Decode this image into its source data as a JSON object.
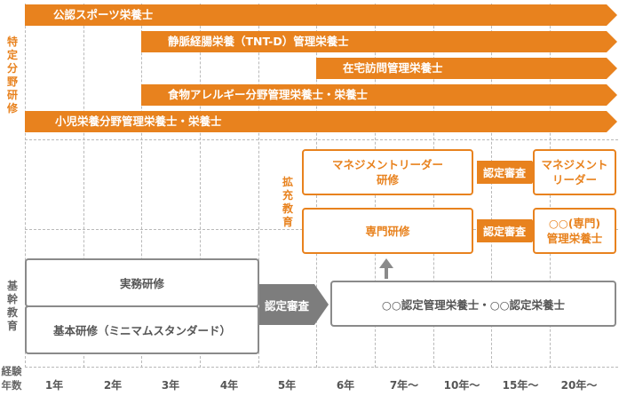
{
  "row_labels": {
    "specialty_training": "特定分野研修",
    "extended_education": "拡充教育",
    "core_education": "基幹教育",
    "years_of_experience": "経験年数"
  },
  "specialty_bars": [
    {
      "label": "公認スポーツ栄養士"
    },
    {
      "label": "静脈経腸栄養（TNT-D）管理栄養士"
    },
    {
      "label": "在宅訪問管理栄養士"
    },
    {
      "label": "食物アレルギー分野管理栄養士・栄養士"
    },
    {
      "label": "小児栄養分野管理栄養士・栄養士"
    }
  ],
  "extended": {
    "management_training": "マネジメントリーダー研修",
    "specialist_training": "専門研修",
    "certification_1": "認定審査",
    "certification_2": "認定審査",
    "management_leader": "マネジメントリーダー",
    "specialist_dietitian": "○○(専門)管理栄養士"
  },
  "core": {
    "practical_training": "実務研修",
    "basic_training": "基本研修（ミニマムスタンダード）",
    "certification": "認定審査",
    "certified_dietitian": "○○認定管理栄養士・○○認定栄養士"
  },
  "years": [
    "1年",
    "2年",
    "3年",
    "4年",
    "5年",
    "6年",
    "7年～",
    "10年～",
    "15年～",
    "20年～"
  ],
  "colors": {
    "orange": "#e8821e",
    "gray": "#7d7d7d",
    "border_gray": "#8a8a8a"
  }
}
